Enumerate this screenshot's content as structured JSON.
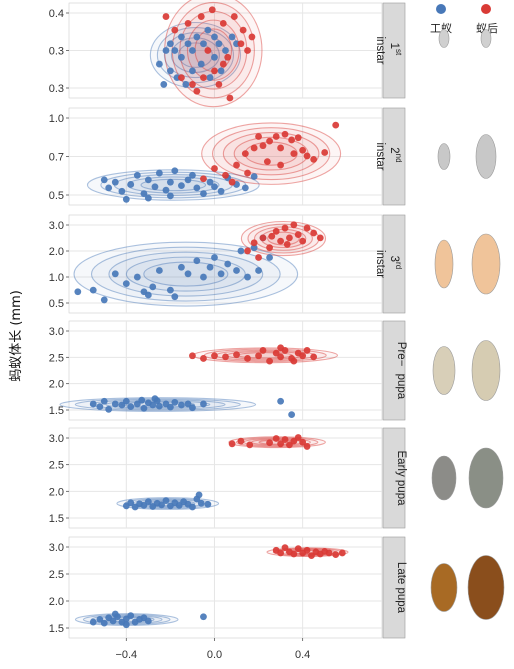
{
  "colors": {
    "worker": "#4878b8",
    "queen": "#d93a35",
    "panel_bg": "#ffffff",
    "grid": "#e6e6e6",
    "strip_bg": "#d9d9d9"
  },
  "legend": {
    "worker_label": "工蚁",
    "queen_label": "蚁后"
  },
  "chart_data": {
    "type": "scatter",
    "ylabel": "蚂蚁体长 (mm)",
    "x_ticks": [
      "−0.4",
      "0.0",
      "0.4"
    ],
    "x_tick_values": [
      -0.4,
      0.0,
      0.4
    ],
    "xlim": [
      -0.66,
      0.76
    ],
    "grid": true,
    "legend_position": "top-right",
    "series_names": [
      "工蚁",
      "蚁后"
    ],
    "panels": [
      {
        "strip": [
          "1",
          "st",
          "instar"
        ],
        "y_ticks": [
          "0.4",
          "0.3",
          "0.3"
        ],
        "y_tick_values": [
          0.4,
          0.3,
          0.3
        ],
        "yrange": [
          0.28,
          0.42
        ],
        "worker": [
          [
            -0.2,
            0.36
          ],
          [
            -0.22,
            0.35
          ],
          [
            -0.18,
            0.35
          ],
          [
            -0.15,
            0.37
          ],
          [
            -0.12,
            0.36
          ],
          [
            -0.1,
            0.35
          ],
          [
            -0.08,
            0.37
          ],
          [
            -0.05,
            0.36
          ],
          [
            -0.03,
            0.38
          ],
          [
            0.0,
            0.37
          ],
          [
            0.02,
            0.36
          ],
          [
            0.05,
            0.35
          ],
          [
            0.08,
            0.37
          ],
          [
            0.1,
            0.36
          ],
          [
            -0.25,
            0.33
          ],
          [
            -0.2,
            0.32
          ],
          [
            -0.17,
            0.31
          ],
          [
            -0.13,
            0.3
          ],
          [
            -0.1,
            0.32
          ],
          [
            -0.06,
            0.33
          ],
          [
            -0.02,
            0.31
          ],
          [
            0.03,
            0.32
          ],
          [
            0.0,
            0.34
          ],
          [
            -0.15,
            0.34
          ],
          [
            -0.23,
            0.3
          ]
        ],
        "queen": [
          [
            -0.22,
            0.4
          ],
          [
            -0.18,
            0.38
          ],
          [
            -0.12,
            0.39
          ],
          [
            -0.06,
            0.4
          ],
          [
            -0.01,
            0.41
          ],
          [
            0.04,
            0.39
          ],
          [
            0.09,
            0.4
          ],
          [
            0.13,
            0.38
          ],
          [
            0.17,
            0.37
          ],
          [
            0.12,
            0.36
          ],
          [
            0.06,
            0.34
          ],
          [
            0.0,
            0.32
          ],
          [
            -0.05,
            0.31
          ],
          [
            -0.1,
            0.3
          ],
          [
            -0.15,
            0.31
          ],
          [
            -0.08,
            0.29
          ],
          [
            0.02,
            0.3
          ],
          [
            0.04,
            0.33
          ],
          [
            0.15,
            0.35
          ],
          [
            -0.03,
            0.35
          ],
          [
            0.07,
            0.28
          ]
        ]
      },
      {
        "strip": [
          "2",
          "nd",
          "instar"
        ],
        "y_ticks": [
          "1.0",
          "0.7",
          "0.5"
        ],
        "y_tick_values": [
          1.0,
          0.7,
          0.5
        ],
        "yrange": [
          0.4,
          1.25
        ],
        "worker": [
          [
            -0.5,
            0.62
          ],
          [
            -0.48,
            0.55
          ],
          [
            -0.45,
            0.6
          ],
          [
            -0.42,
            0.52
          ],
          [
            -0.38,
            0.58
          ],
          [
            -0.35,
            0.66
          ],
          [
            -0.32,
            0.5
          ],
          [
            -0.3,
            0.62
          ],
          [
            -0.27,
            0.56
          ],
          [
            -0.25,
            0.68
          ],
          [
            -0.22,
            0.53
          ],
          [
            -0.2,
            0.6
          ],
          [
            -0.18,
            0.7
          ],
          [
            -0.15,
            0.57
          ],
          [
            -0.12,
            0.62
          ],
          [
            -0.1,
            0.66
          ],
          [
            -0.08,
            0.55
          ],
          [
            -0.05,
            0.5
          ],
          [
            -0.02,
            0.6
          ],
          [
            0.0,
            0.56
          ],
          [
            0.03,
            0.52
          ],
          [
            0.06,
            0.64
          ],
          [
            0.1,
            0.58
          ],
          [
            0.14,
            0.55
          ],
          [
            0.18,
            0.65
          ],
          [
            -0.4,
            0.45
          ],
          [
            -0.3,
            0.46
          ],
          [
            -0.2,
            0.48
          ]
        ],
        "queen": [
          [
            -0.05,
            0.63
          ],
          [
            0.0,
            0.72
          ],
          [
            0.05,
            0.66
          ],
          [
            0.1,
            0.75
          ],
          [
            0.14,
            0.85
          ],
          [
            0.18,
            0.9
          ],
          [
            0.2,
            1.0
          ],
          [
            0.22,
            0.92
          ],
          [
            0.25,
            0.96
          ],
          [
            0.28,
            1.0
          ],
          [
            0.3,
            0.9
          ],
          [
            0.32,
            1.02
          ],
          [
            0.35,
            0.97
          ],
          [
            0.38,
            0.99
          ],
          [
            0.4,
            0.88
          ],
          [
            0.42,
            0.83
          ],
          [
            0.45,
            0.8
          ],
          [
            0.5,
            0.86
          ],
          [
            0.55,
            1.1
          ],
          [
            0.36,
            0.85
          ],
          [
            0.15,
            0.68
          ],
          [
            0.24,
            0.78
          ],
          [
            0.08,
            0.6
          ],
          [
            0.3,
            0.75
          ]
        ]
      },
      {
        "strip": [
          "3",
          "rd",
          "instar"
        ],
        "y_ticks": [
          "3.0",
          "2.0",
          "1.0",
          "0.5"
        ],
        "y_tick_values": [
          3.0,
          2.0,
          1.0,
          0.5
        ],
        "yrange": [
          0.3,
          3.3
        ],
        "worker": [
          [
            -0.62,
            0.95
          ],
          [
            -0.55,
            1.0
          ],
          [
            -0.5,
            0.7
          ],
          [
            -0.45,
            1.5
          ],
          [
            -0.4,
            1.2
          ],
          [
            -0.35,
            1.4
          ],
          [
            -0.32,
            0.95
          ],
          [
            -0.3,
            0.85
          ],
          [
            -0.28,
            1.1
          ],
          [
            -0.25,
            1.6
          ],
          [
            -0.2,
            1.0
          ],
          [
            -0.18,
            0.8
          ],
          [
            -0.15,
            1.7
          ],
          [
            -0.12,
            1.5
          ],
          [
            -0.08,
            1.9
          ],
          [
            -0.05,
            1.4
          ],
          [
            -0.02,
            1.7
          ],
          [
            0.0,
            2.0
          ],
          [
            0.03,
            1.5
          ],
          [
            0.06,
            1.8
          ],
          [
            0.1,
            1.6
          ],
          [
            0.12,
            2.2
          ],
          [
            0.15,
            1.4
          ],
          [
            0.18,
            2.3
          ],
          [
            0.2,
            1.6
          ],
          [
            0.22,
            2.6
          ],
          [
            0.25,
            2.0
          ]
        ],
        "queen": [
          [
            0.15,
            2.2
          ],
          [
            0.18,
            2.45
          ],
          [
            0.2,
            2.0
          ],
          [
            0.22,
            2.6
          ],
          [
            0.25,
            2.3
          ],
          [
            0.28,
            2.8
          ],
          [
            0.3,
            2.5
          ],
          [
            0.32,
            2.9
          ],
          [
            0.34,
            2.6
          ],
          [
            0.36,
            3.0
          ],
          [
            0.38,
            2.7
          ],
          [
            0.4,
            2.5
          ],
          [
            0.42,
            2.9
          ],
          [
            0.45,
            2.75
          ],
          [
            0.48,
            2.6
          ],
          [
            0.26,
            2.65
          ],
          [
            0.33,
            2.4
          ]
        ]
      },
      {
        "strip": [
          "Pre−",
          "",
          "pupa"
        ],
        "y_ticks": [
          "3.0",
          "2.5",
          "2.0",
          "1.5"
        ],
        "y_tick_values": [
          3.0,
          2.5,
          2.0,
          1.5
        ],
        "yrange": [
          1.2,
          3.05
        ],
        "worker": [
          [
            -0.55,
            1.5
          ],
          [
            -0.52,
            1.45
          ],
          [
            -0.5,
            1.55
          ],
          [
            -0.48,
            1.4
          ],
          [
            -0.45,
            1.5
          ],
          [
            -0.42,
            1.48
          ],
          [
            -0.4,
            1.55
          ],
          [
            -0.38,
            1.45
          ],
          [
            -0.35,
            1.5
          ],
          [
            -0.32,
            1.42
          ],
          [
            -0.3,
            1.52
          ],
          [
            -0.28,
            1.48
          ],
          [
            -0.26,
            1.56
          ],
          [
            -0.25,
            1.46
          ],
          [
            -0.22,
            1.5
          ],
          [
            -0.2,
            1.44
          ],
          [
            -0.18,
            1.53
          ],
          [
            -0.15,
            1.48
          ],
          [
            -0.12,
            1.5
          ],
          [
            -0.1,
            1.43
          ],
          [
            -0.05,
            1.5
          ],
          [
            0.3,
            1.55
          ],
          [
            0.35,
            1.3
          ],
          [
            -0.27,
            1.6
          ],
          [
            -0.33,
            1.57
          ]
        ],
        "queen": [
          [
            -0.1,
            2.4
          ],
          [
            -0.05,
            2.35
          ],
          [
            0.0,
            2.4
          ],
          [
            0.05,
            2.38
          ],
          [
            0.1,
            2.42
          ],
          [
            0.15,
            2.35
          ],
          [
            0.2,
            2.4
          ],
          [
            0.22,
            2.5
          ],
          [
            0.25,
            2.3
          ],
          [
            0.28,
            2.45
          ],
          [
            0.3,
            2.38
          ],
          [
            0.32,
            2.5
          ],
          [
            0.35,
            2.35
          ],
          [
            0.38,
            2.45
          ],
          [
            0.4,
            2.4
          ],
          [
            0.42,
            2.5
          ],
          [
            0.45,
            2.38
          ],
          [
            0.3,
            2.55
          ],
          [
            0.36,
            2.3
          ]
        ]
      },
      {
        "strip": [
          "Early pupa",
          "",
          ""
        ],
        "y_ticks": [
          "3.0",
          "2.5",
          "2.0",
          "1.5"
        ],
        "y_tick_values": [
          3.0,
          2.5,
          2.0,
          1.5
        ],
        "yrange": [
          1.2,
          3.1
        ],
        "worker": [
          [
            -0.4,
            1.62
          ],
          [
            -0.38,
            1.68
          ],
          [
            -0.36,
            1.6
          ],
          [
            -0.34,
            1.66
          ],
          [
            -0.32,
            1.63
          ],
          [
            -0.3,
            1.7
          ],
          [
            -0.28,
            1.61
          ],
          [
            -0.26,
            1.67
          ],
          [
            -0.24,
            1.64
          ],
          [
            -0.22,
            1.72
          ],
          [
            -0.2,
            1.62
          ],
          [
            -0.18,
            1.68
          ],
          [
            -0.16,
            1.63
          ],
          [
            -0.14,
            1.7
          ],
          [
            -0.12,
            1.65
          ],
          [
            -0.1,
            1.6
          ],
          [
            -0.08,
            1.75
          ],
          [
            -0.06,
            1.67
          ],
          [
            -0.07,
            1.83
          ],
          [
            -0.03,
            1.65
          ]
        ],
        "queen": [
          [
            0.08,
            2.8
          ],
          [
            0.12,
            2.85
          ],
          [
            0.16,
            2.78
          ],
          [
            0.25,
            2.82
          ],
          [
            0.28,
            2.9
          ],
          [
            0.3,
            2.8
          ],
          [
            0.32,
            2.88
          ],
          [
            0.34,
            2.78
          ],
          [
            0.36,
            2.85
          ],
          [
            0.38,
            2.92
          ],
          [
            0.4,
            2.83
          ],
          [
            0.42,
            2.75
          ]
        ]
      },
      {
        "strip": [
          "Late pupa",
          "",
          ""
        ],
        "y_ticks": [
          "3.0",
          "2.5",
          "2.0",
          "1.5"
        ],
        "y_tick_values": [
          3.0,
          2.5,
          2.0,
          1.5
        ],
        "yrange": [
          1.2,
          3.1
        ],
        "worker": [
          [
            -0.55,
            1.5
          ],
          [
            -0.52,
            1.55
          ],
          [
            -0.5,
            1.48
          ],
          [
            -0.48,
            1.58
          ],
          [
            -0.46,
            1.52
          ],
          [
            -0.44,
            1.6
          ],
          [
            -0.42,
            1.5
          ],
          [
            -0.4,
            1.56
          ],
          [
            -0.38,
            1.62
          ],
          [
            -0.36,
            1.5
          ],
          [
            -0.34,
            1.55
          ],
          [
            -0.32,
            1.58
          ],
          [
            -0.3,
            1.52
          ],
          [
            -0.45,
            1.65
          ],
          [
            -0.4,
            1.45
          ],
          [
            -0.05,
            1.6
          ]
        ],
        "queen": [
          [
            0.28,
            2.85
          ],
          [
            0.3,
            2.8
          ],
          [
            0.32,
            2.9
          ],
          [
            0.34,
            2.82
          ],
          [
            0.36,
            2.78
          ],
          [
            0.38,
            2.88
          ],
          [
            0.4,
            2.8
          ],
          [
            0.42,
            2.85
          ],
          [
            0.44,
            2.75
          ],
          [
            0.46,
            2.82
          ],
          [
            0.48,
            2.78
          ],
          [
            0.5,
            2.83
          ],
          [
            0.52,
            2.8
          ],
          [
            0.55,
            2.77
          ],
          [
            0.58,
            2.8
          ]
        ]
      }
    ]
  }
}
